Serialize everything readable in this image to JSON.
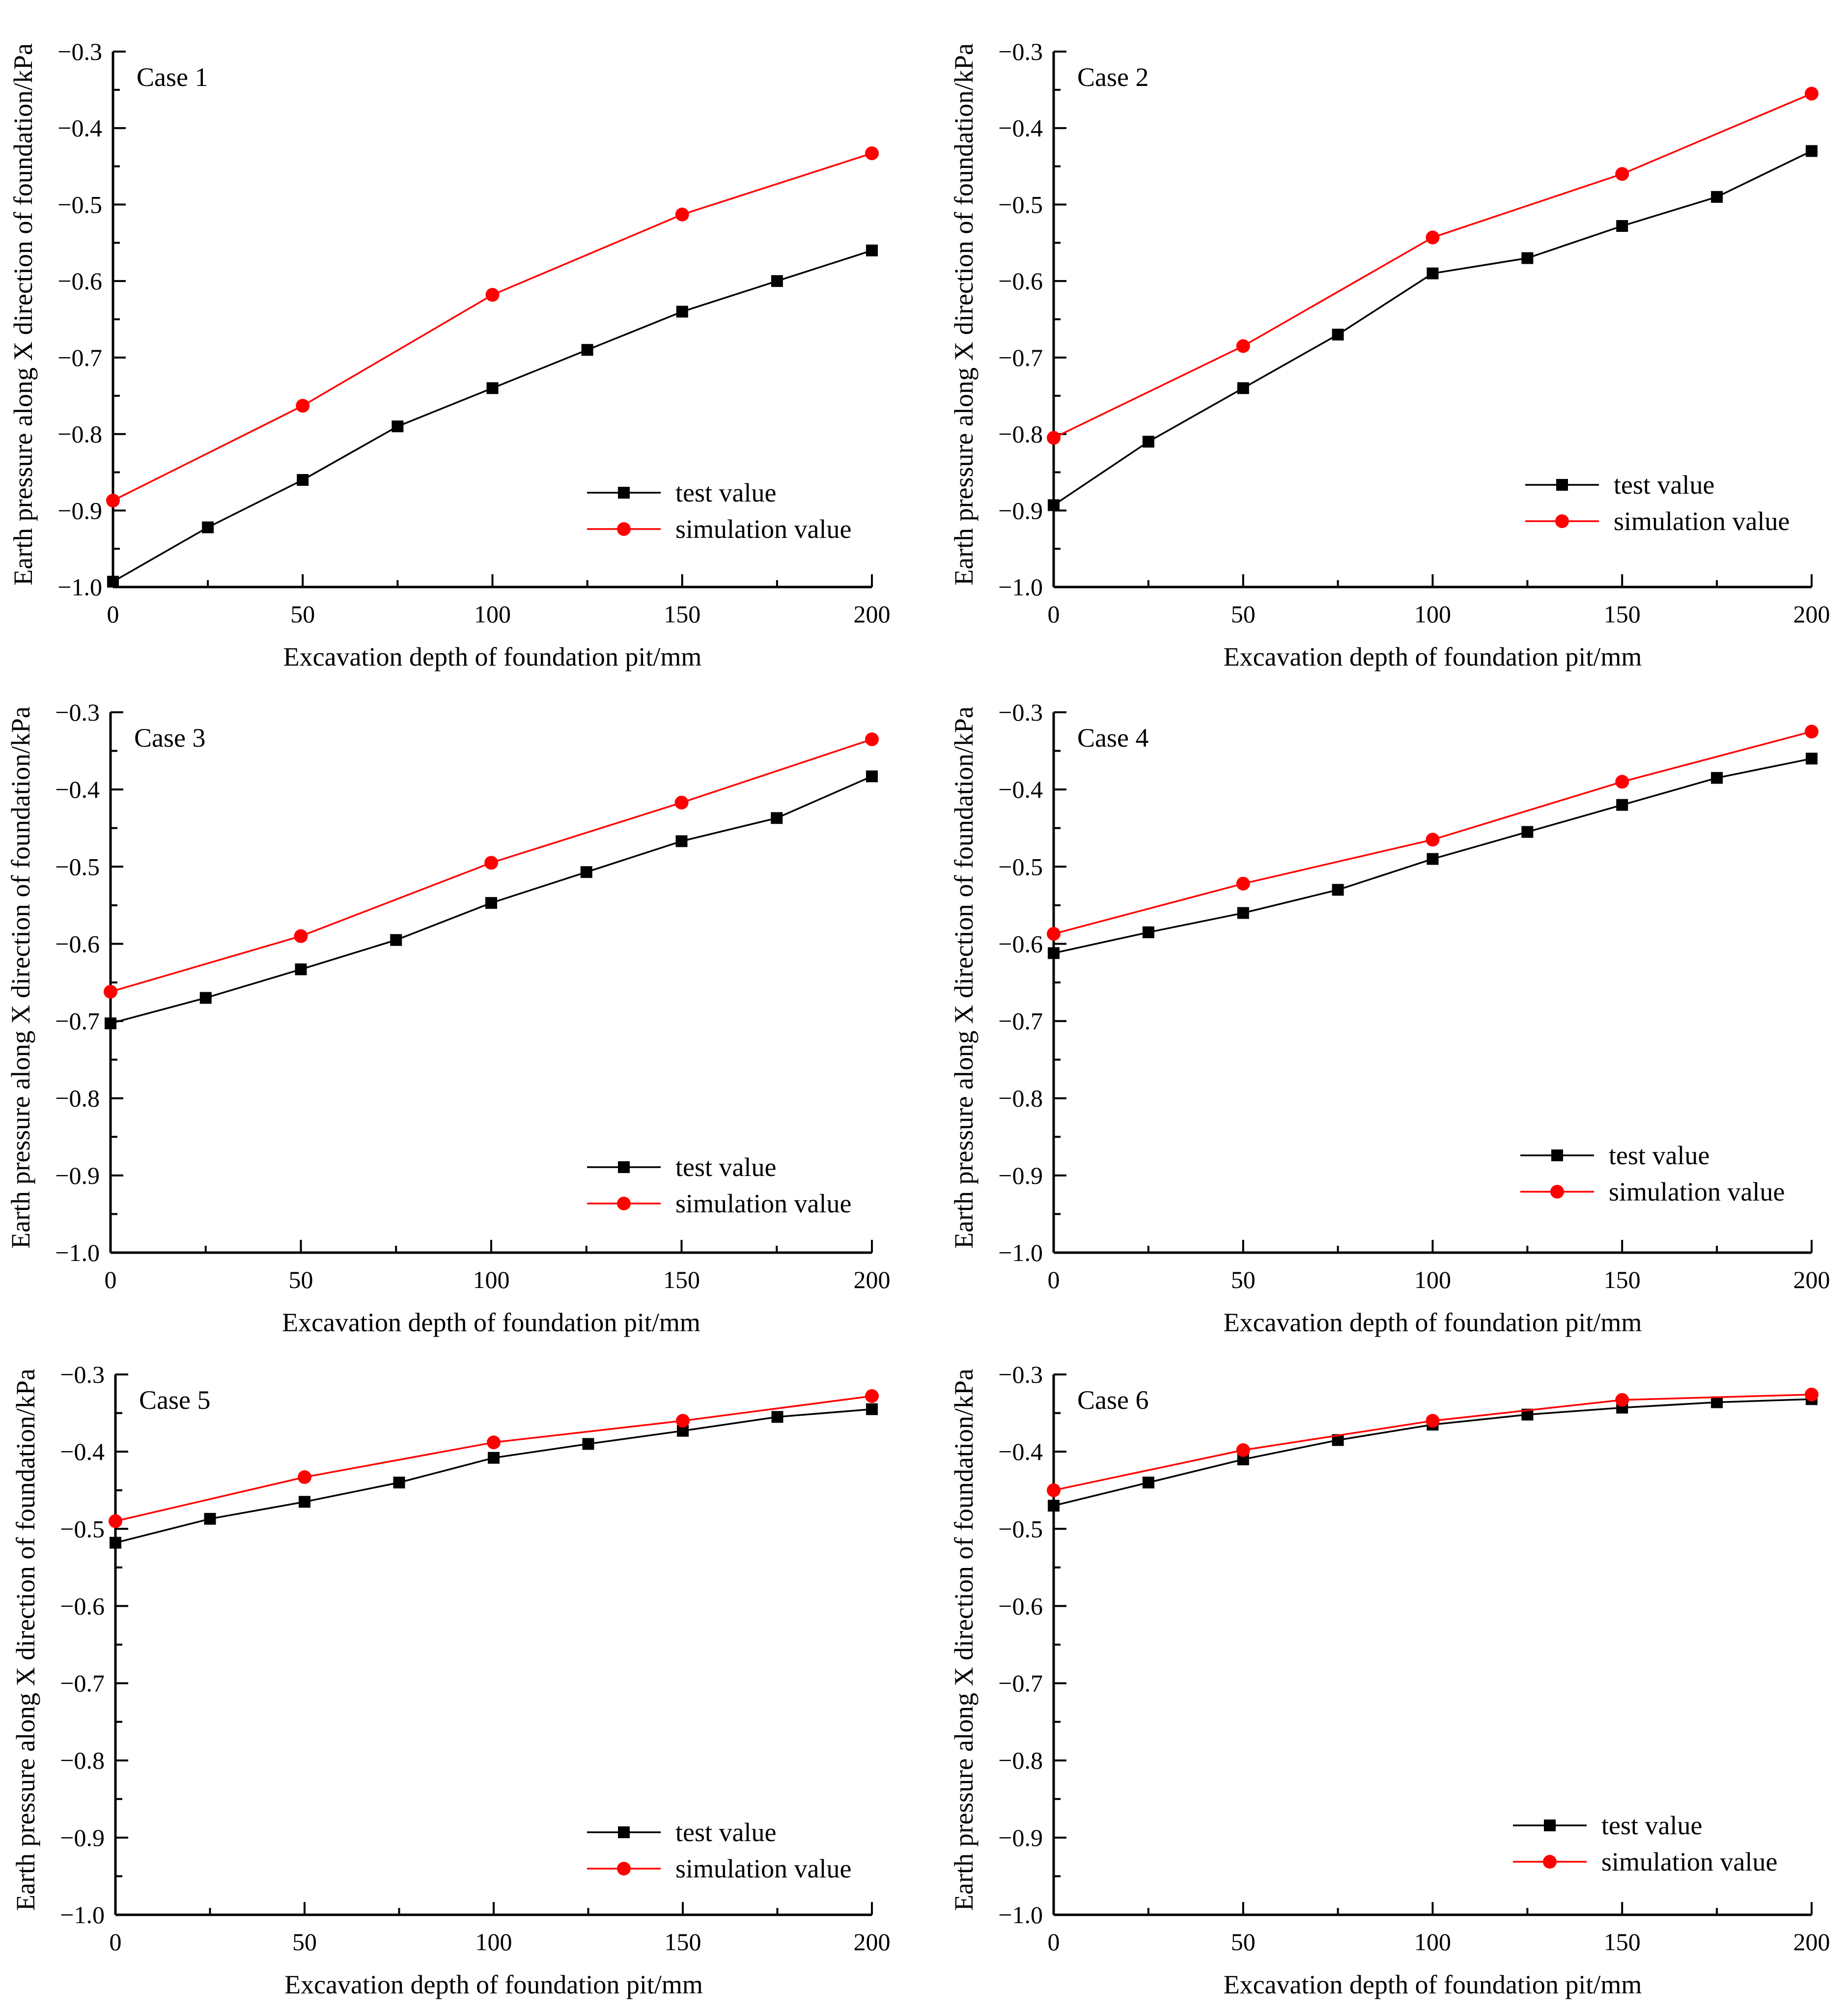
{
  "colors": {
    "test": "#000000",
    "simulation": "#ff0000",
    "axis": "#000000"
  },
  "chart_data": [
    {
      "type": "line",
      "title": "Case 1",
      "xlabel": "Excavation depth of foundation pit/mm",
      "ylabel": "Earth pressure along X direction of foundation/kPa",
      "xlim": [
        0,
        200
      ],
      "ylim": [
        -1.0,
        -0.3
      ],
      "xticks": [
        0,
        50,
        100,
        150,
        200
      ],
      "xtick_labels": [
        "0",
        "50",
        "100",
        "150",
        "200"
      ],
      "yticks": [
        -0.3,
        -0.4,
        -0.5,
        -0.6,
        -0.7,
        -0.8,
        -0.9,
        -1.0
      ],
      "ytick_labels": [
        "−0.3",
        "−0.4",
        "−0.5",
        "−0.6",
        "−0.7",
        "−0.8",
        "−0.9",
        "−1.0"
      ],
      "legend_position": "lower-right",
      "series": [
        {
          "name": "test value",
          "marker": "square",
          "color": "#000000",
          "x": [
            0,
            25,
            50,
            75,
            100,
            125,
            150,
            175,
            200
          ],
          "y": [
            -0.993,
            -0.922,
            -0.86,
            -0.79,
            -0.74,
            -0.69,
            -0.64,
            -0.6,
            -0.56
          ]
        },
        {
          "name": "simulation value",
          "marker": "circle",
          "color": "#ff0000",
          "x": [
            0,
            50,
            100,
            150,
            200
          ],
          "y": [
            -0.887,
            -0.763,
            -0.618,
            -0.513,
            -0.433
          ]
        }
      ]
    },
    {
      "type": "line",
      "title": "Case 2",
      "xlabel": "Excavation depth of foundation pit/mm",
      "ylabel": "Earth pressure along X direction of foundation/kPa",
      "xlim": [
        0,
        200
      ],
      "ylim": [
        -1.0,
        -0.3
      ],
      "xticks": [
        0,
        50,
        100,
        150,
        200
      ],
      "xtick_labels": [
        "0",
        "50",
        "100",
        "150",
        "200"
      ],
      "yticks": [
        -0.3,
        -0.4,
        -0.5,
        -0.6,
        -0.7,
        -0.8,
        -0.9,
        -1.0
      ],
      "ytick_labels": [
        "−0.3",
        "−0.4",
        "−0.5",
        "−0.6",
        "−0.7",
        "−0.8",
        "−0.9",
        "−1.0"
      ],
      "legend_position": "lower-right",
      "series": [
        {
          "name": "test value",
          "marker": "square",
          "color": "#000000",
          "x": [
            0,
            25,
            50,
            75,
            100,
            125,
            150,
            175,
            200
          ],
          "y": [
            -0.893,
            -0.81,
            -0.74,
            -0.67,
            -0.59,
            -0.57,
            -0.528,
            -0.49,
            -0.43
          ]
        },
        {
          "name": "simulation value",
          "marker": "circle",
          "color": "#ff0000",
          "x": [
            0,
            50,
            100,
            150,
            200
          ],
          "y": [
            -0.805,
            -0.685,
            -0.543,
            -0.46,
            -0.355
          ]
        }
      ]
    },
    {
      "type": "line",
      "title": "Case 3",
      "xlabel": "Excavation depth of foundation pit/mm",
      "ylabel": "Earth pressure along X direction of foundation/kPa",
      "xlim": [
        0,
        200
      ],
      "ylim": [
        -1.0,
        -0.3
      ],
      "xticks": [
        0,
        50,
        100,
        150,
        200
      ],
      "xtick_labels": [
        "0",
        "50",
        "100",
        "150",
        "200"
      ],
      "yticks": [
        -0.3,
        -0.4,
        -0.5,
        -0.6,
        -0.7,
        -0.8,
        -0.9,
        -1.0
      ],
      "ytick_labels": [
        "−0.3",
        "−0.4",
        "−0.5",
        "−0.6",
        "−0.7",
        "−0.8",
        "−0.9",
        "−1.0"
      ],
      "legend_position": "lower-right",
      "series": [
        {
          "name": "test value",
          "marker": "square",
          "color": "#000000",
          "x": [
            0,
            25,
            50,
            75,
            100,
            125,
            150,
            175,
            200
          ],
          "y": [
            -0.703,
            -0.67,
            -0.633,
            -0.595,
            -0.547,
            -0.507,
            -0.467,
            -0.437,
            -0.383
          ]
        },
        {
          "name": "simulation value",
          "marker": "circle",
          "color": "#ff0000",
          "x": [
            0,
            50,
            100,
            150,
            200
          ],
          "y": [
            -0.662,
            -0.59,
            -0.495,
            -0.417,
            -0.335
          ]
        }
      ]
    },
    {
      "type": "line",
      "title": "Case 4",
      "xlabel": "Excavation depth of foundation pit/mm",
      "ylabel": "Earth pressure along X direction of foundation/kPa",
      "xlim": [
        0,
        200
      ],
      "ylim": [
        -1.0,
        -0.3
      ],
      "xticks": [
        0,
        50,
        100,
        150,
        200
      ],
      "xtick_labels": [
        "0",
        "50",
        "100",
        "150",
        "200"
      ],
      "yticks": [
        -0.3,
        -0.4,
        -0.5,
        -0.6,
        -0.7,
        -0.8,
        -0.9,
        -1.0
      ],
      "ytick_labels": [
        "−0.3",
        "−0.4",
        "−0.5",
        "−0.6",
        "−0.7",
        "−0.8",
        "−0.9",
        "−1.0"
      ],
      "legend_position": "lower-right",
      "series": [
        {
          "name": "test value",
          "marker": "square",
          "color": "#000000",
          "x": [
            0,
            25,
            50,
            75,
            100,
            125,
            150,
            175,
            200
          ],
          "y": [
            -0.612,
            -0.585,
            -0.56,
            -0.53,
            -0.49,
            -0.455,
            -0.42,
            -0.385,
            -0.36
          ]
        },
        {
          "name": "simulation value",
          "marker": "circle",
          "color": "#ff0000",
          "x": [
            0,
            50,
            100,
            150,
            200
          ],
          "y": [
            -0.587,
            -0.522,
            -0.465,
            -0.39,
            -0.325
          ]
        }
      ]
    },
    {
      "type": "line",
      "title": "Case 5",
      "xlabel": "Excavation depth of foundation pit/mm",
      "ylabel": "Earth pressure along X direction of foundation/kPa",
      "xlim": [
        0,
        200
      ],
      "ylim": [
        -1.0,
        -0.3
      ],
      "xticks": [
        0,
        50,
        100,
        150,
        200
      ],
      "xtick_labels": [
        "0",
        "50",
        "100",
        "150",
        "200"
      ],
      "yticks": [
        -0.3,
        -0.4,
        -0.5,
        -0.6,
        -0.7,
        -0.8,
        -0.9,
        -1.0
      ],
      "ytick_labels": [
        "−0.3",
        "−0.4",
        "−0.5",
        "−0.6",
        "−0.7",
        "−0.8",
        "−0.9",
        "−1.0"
      ],
      "legend_position": "lower-right",
      "series": [
        {
          "name": "test value",
          "marker": "square",
          "color": "#000000",
          "x": [
            0,
            25,
            50,
            75,
            100,
            125,
            150,
            175,
            200
          ],
          "y": [
            -0.518,
            -0.487,
            -0.465,
            -0.44,
            -0.408,
            -0.39,
            -0.373,
            -0.355,
            -0.345
          ]
        },
        {
          "name": "simulation value",
          "marker": "circle",
          "color": "#ff0000",
          "x": [
            0,
            50,
            100,
            150,
            200
          ],
          "y": [
            -0.49,
            -0.433,
            -0.388,
            -0.36,
            -0.328
          ]
        }
      ]
    },
    {
      "type": "line",
      "title": "Case 6",
      "xlabel": "Excavation depth of foundation pit/mm",
      "ylabel": "Earth pressure along X direction of foundation/kPa",
      "xlim": [
        0,
        200
      ],
      "ylim": [
        -1.0,
        -0.3
      ],
      "xticks": [
        0,
        50,
        100,
        150,
        200
      ],
      "xtick_labels": [
        "0",
        "50",
        "100",
        "150",
        "200"
      ],
      "yticks": [
        -0.3,
        -0.4,
        -0.5,
        -0.6,
        -0.7,
        -0.8,
        -0.9,
        -1.0
      ],
      "ytick_labels": [
        "−0.3",
        "−0.4",
        "−0.5",
        "−0.6",
        "−0.7",
        "−0.8",
        "−0.9",
        "−1.0"
      ],
      "legend_position": "lower-right",
      "series": [
        {
          "name": "test value",
          "marker": "square",
          "color": "#000000",
          "x": [
            0,
            25,
            50,
            75,
            100,
            125,
            150,
            175,
            200
          ],
          "y": [
            -0.47,
            -0.44,
            -0.41,
            -0.385,
            -0.365,
            -0.352,
            -0.343,
            -0.336,
            -0.332
          ]
        },
        {
          "name": "simulation value",
          "marker": "circle",
          "color": "#ff0000",
          "x": [
            0,
            50,
            100,
            150,
            200
          ],
          "y": [
            -0.45,
            -0.398,
            -0.36,
            -0.333,
            -0.326
          ]
        }
      ]
    }
  ]
}
